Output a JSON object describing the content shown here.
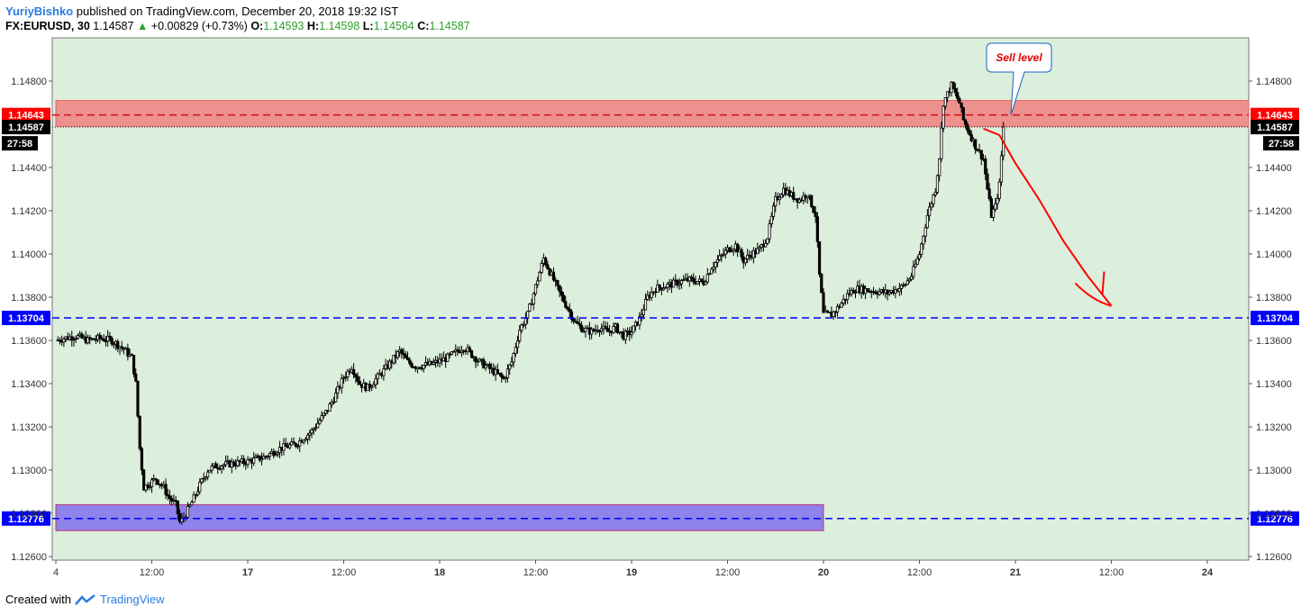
{
  "header": {
    "author": "YuriyBishko",
    "published_text": "published on TradingView.com, December 20, 2018 19:32 IST",
    "symbol": "FX:EURUSD, 30",
    "last": "1.14587",
    "change": "+0.00829 (+0.73%)",
    "o_label": "O:",
    "o_value": "1.14593",
    "h_label": "H:",
    "h_value": "1.14598",
    "l_label": "L:",
    "l_value": "1.14564",
    "c_label": "C:",
    "c_value": "1.14587"
  },
  "footer": {
    "created_with": "Created with",
    "brand": "TradingView"
  },
  "annotation": {
    "sell_level": "Sell level"
  },
  "colors": {
    "plot_bg": "#dcefdc",
    "resistance_zone": "#f08080",
    "support_zone": "#7b68ee",
    "level_line": "#0000ff",
    "arrow": "#ff0000",
    "candle": "#000000"
  },
  "chart_data": {
    "type": "candlestick",
    "symbol": "EURUSD",
    "timeframe": "30",
    "ylim": [
      1.1255,
      1.149
    ],
    "yticks": [
      1.126,
      1.128,
      1.13,
      1.132,
      1.134,
      1.136,
      1.138,
      1.14,
      1.142,
      1.144,
      1.148
    ],
    "ytick_labels": [
      "1.12600",
      "1.12800",
      "1.13000",
      "1.13200",
      "1.13400",
      "1.13600",
      "1.13800",
      "1.14000",
      "1.14200",
      "1.14400",
      "1.14800"
    ],
    "xticks": [
      {
        "label": "4",
        "t": 0
      },
      {
        "label": "12:00",
        "t": 24
      },
      {
        "label": "17",
        "t": 48
      },
      {
        "label": "12:00",
        "t": 72
      },
      {
        "label": "18",
        "t": 96
      },
      {
        "label": "12:00",
        "t": 120
      },
      {
        "label": "19",
        "t": 144
      },
      {
        "label": "12:00",
        "t": 168
      },
      {
        "label": "20",
        "t": 192
      },
      {
        "label": "12:00",
        "t": 216
      },
      {
        "label": "21",
        "t": 240
      },
      {
        "label": "12:00",
        "t": 264
      },
      {
        "label": "24",
        "t": 288
      }
    ],
    "x_range": [
      0,
      300
    ],
    "levels": [
      {
        "price": 1.14643,
        "label": "1.14643",
        "tag_color": "#ff0000"
      },
      {
        "price": 1.13704,
        "label": "1.13704",
        "tag_color": "#0000ff"
      },
      {
        "price": 1.12776,
        "label": "1.12776",
        "tag_color": "#0000ff"
      }
    ],
    "current_price": {
      "price": 1.14587,
      "label": "1.14587",
      "countdown": "27:58"
    },
    "zones": [
      {
        "name": "resistance",
        "t_start": 0,
        "t_end": 300,
        "p_low": 1.1459,
        "p_high": 1.1471
      },
      {
        "name": "support",
        "t_start": 0,
        "t_end": 192,
        "p_low": 1.1272,
        "p_high": 1.1284
      }
    ],
    "projection": [
      [
        232,
        1.1458
      ],
      [
        236,
        1.1455
      ],
      [
        240,
        1.1442
      ],
      [
        246,
        1.1425
      ],
      [
        252,
        1.1406
      ],
      [
        258,
        1.139
      ],
      [
        264,
        1.1376
      ]
    ],
    "close_path": [
      [
        0,
        1.136
      ],
      [
        2,
        1.1361
      ],
      [
        5,
        1.1362
      ],
      [
        8,
        1.136
      ],
      [
        11,
        1.1361
      ],
      [
        14,
        1.136
      ],
      [
        17,
        1.1356
      ],
      [
        19,
        1.1352
      ],
      [
        20,
        1.134
      ],
      [
        21,
        1.131
      ],
      [
        22,
        1.1292
      ],
      [
        25,
        1.1296
      ],
      [
        27,
        1.1292
      ],
      [
        28,
        1.1288
      ],
      [
        30,
        1.1284
      ],
      [
        31,
        1.1276
      ],
      [
        32,
        1.1278
      ],
      [
        34,
        1.1285
      ],
      [
        36,
        1.1293
      ],
      [
        38,
        1.13
      ],
      [
        40,
        1.1302
      ],
      [
        44,
        1.1303
      ],
      [
        48,
        1.1304
      ],
      [
        52,
        1.1306
      ],
      [
        56,
        1.131
      ],
      [
        60,
        1.1312
      ],
      [
        64,
        1.1318
      ],
      [
        68,
        1.1328
      ],
      [
        70,
        1.1335
      ],
      [
        72,
        1.1343
      ],
      [
        74,
        1.1348
      ],
      [
        76,
        1.134
      ],
      [
        78,
        1.1338
      ],
      [
        82,
        1.1346
      ],
      [
        86,
        1.1355
      ],
      [
        88,
        1.135
      ],
      [
        90,
        1.1348
      ],
      [
        94,
        1.1349
      ],
      [
        98,
        1.1352
      ],
      [
        102,
        1.1357
      ],
      [
        106,
        1.135
      ],
      [
        110,
        1.1345
      ],
      [
        112,
        1.1342
      ],
      [
        114,
        1.135
      ],
      [
        116,
        1.1365
      ],
      [
        118,
        1.1372
      ],
      [
        120,
        1.1385
      ],
      [
        122,
        1.1398
      ],
      [
        124,
        1.139
      ],
      [
        126,
        1.1382
      ],
      [
        128,
        1.1375
      ],
      [
        130,
        1.1368
      ],
      [
        132,
        1.1365
      ],
      [
        134,
        1.1364
      ],
      [
        136,
        1.1366
      ],
      [
        138,
        1.1364
      ],
      [
        140,
        1.1366
      ],
      [
        142,
        1.1362
      ],
      [
        144,
        1.1364
      ],
      [
        146,
        1.137
      ],
      [
        148,
        1.138
      ],
      [
        150,
        1.1384
      ],
      [
        154,
        1.1386
      ],
      [
        158,
        1.1388
      ],
      [
        162,
        1.1387
      ],
      [
        164,
        1.1394
      ],
      [
        166,
        1.1398
      ],
      [
        168,
        1.1402
      ],
      [
        170,
        1.1404
      ],
      [
        172,
        1.1397
      ],
      [
        174,
        1.14
      ],
      [
        176,
        1.1402
      ],
      [
        178,
        1.1408
      ],
      [
        180,
        1.1425
      ],
      [
        182,
        1.143
      ],
      [
        184,
        1.1427
      ],
      [
        186,
        1.1425
      ],
      [
        188,
        1.1428
      ],
      [
        190,
        1.1418
      ],
      [
        191,
        1.139
      ],
      [
        192,
        1.1372
      ],
      [
        194,
        1.1372
      ],
      [
        196,
        1.1376
      ],
      [
        198,
        1.1381
      ],
      [
        200,
        1.1384
      ],
      [
        204,
        1.1383
      ],
      [
        208,
        1.1382
      ],
      [
        212,
        1.1385
      ],
      [
        214,
        1.139
      ],
      [
        216,
        1.14
      ],
      [
        218,
        1.1418
      ],
      [
        220,
        1.143
      ],
      [
        221,
        1.1445
      ],
      [
        222,
        1.147
      ],
      [
        224,
        1.1478
      ],
      [
        226,
        1.147
      ],
      [
        227,
        1.1462
      ],
      [
        228,
        1.1458
      ],
      [
        230,
        1.145
      ],
      [
        232,
        1.1444
      ],
      [
        233,
        1.143
      ],
      [
        234,
        1.1418
      ],
      [
        235,
        1.1422
      ],
      [
        236,
        1.1432
      ],
      [
        237,
        1.14587
      ]
    ]
  }
}
